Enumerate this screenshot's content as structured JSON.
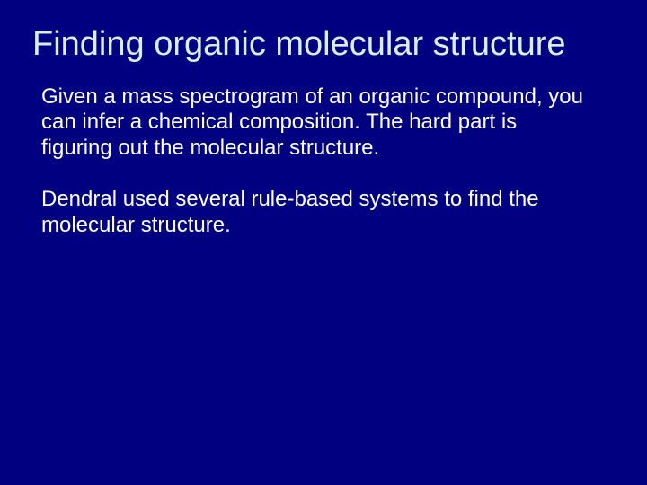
{
  "slide": {
    "background_color": "#000080",
    "title_color": "#d8f0f5",
    "body_color": "#ffffff",
    "title_fontsize": 38,
    "body_fontsize": 24,
    "title": "Finding organic molecular structure",
    "paragraphs": [
      "Given a mass spectrogram of an organic compound, you can infer a chemical composition.  The hard part is figuring out the molecular structure.",
      "Dendral used several rule-based systems to find the molecular structure."
    ]
  }
}
